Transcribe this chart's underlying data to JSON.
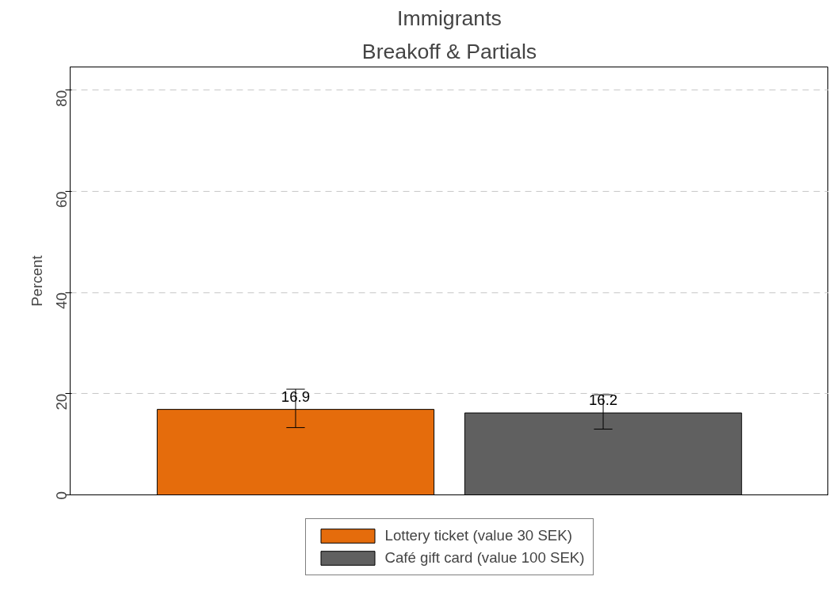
{
  "chart_data": {
    "type": "bar",
    "title": "Immigrants",
    "subtitle": "Breakoff & Partials",
    "ylabel": "Percent",
    "categories": [
      null
    ],
    "series": [
      {
        "name": "Lottery ticket (value 30 SEK)",
        "color": "#e56c0c",
        "values": [
          16.9
        ],
        "errors": [
          [
            13.3,
            20.9
          ]
        ]
      },
      {
        "name": "Café gift card (value 100 SEK)",
        "color": "#606060",
        "values": [
          16.2
        ],
        "errors": [
          [
            13.0,
            19.8
          ]
        ]
      }
    ],
    "ylim": [
      0,
      84.6
    ],
    "yticks": [
      0,
      20,
      40,
      60,
      80
    ],
    "grid": "y",
    "legend": "bottom",
    "data_labels": true,
    "tick_labels": "y"
  }
}
